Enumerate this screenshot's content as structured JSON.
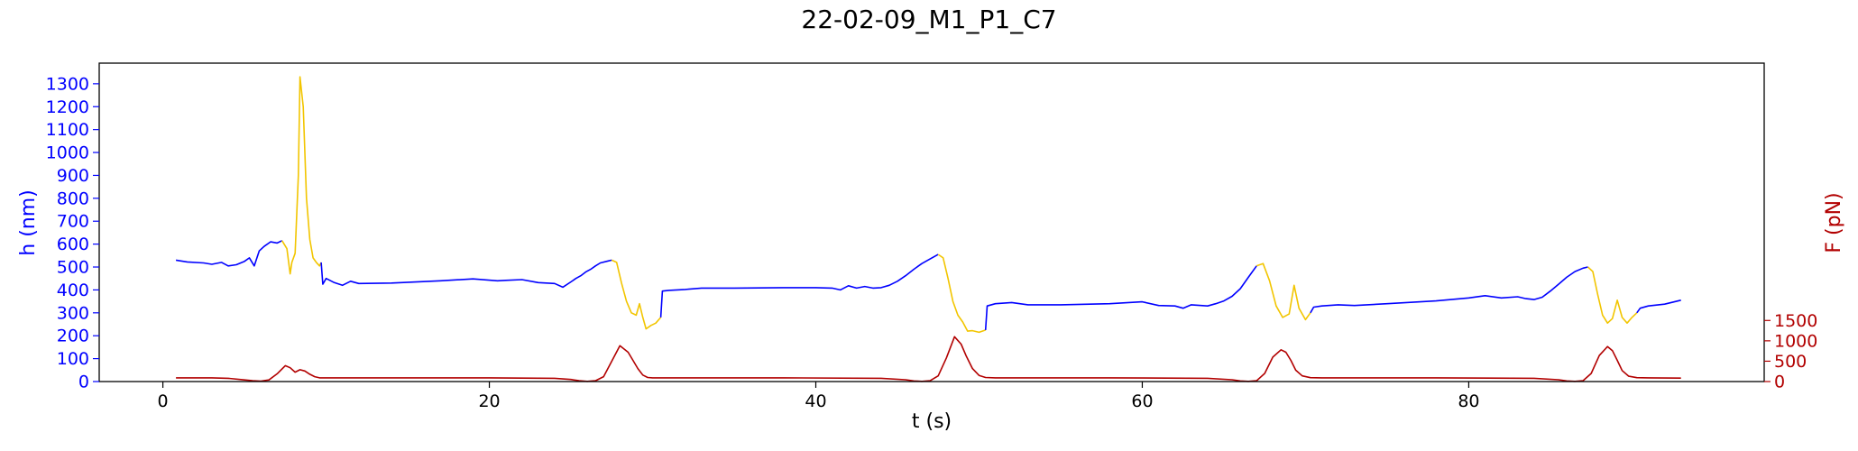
{
  "chart_data": {
    "type": "line",
    "title": "22-02-09_M1_P1_C7",
    "xlabel": "t (s)",
    "ylabel_left": "h (nm)",
    "ylabel_right": "F (pN)",
    "xlim": [
      -3.9,
      98.1
    ],
    "ylim_left": [
      0,
      1390
    ],
    "ylim_right": [
      0,
      7820
    ],
    "x_ticks": [
      0,
      20,
      40,
      60,
      80
    ],
    "y_left_ticks": [
      0,
      100,
      200,
      300,
      400,
      500,
      600,
      700,
      800,
      900,
      1000,
      1100,
      1200,
      1300
    ],
    "y_right_ticks": [
      0,
      500,
      1000,
      1500
    ],
    "colors": {
      "h_series": "#0000ff",
      "h_compression": "#f2c500",
      "force": "#b20000",
      "left_axis": "#0000ff",
      "right_axis": "#b20000"
    },
    "grid": false,
    "series": [
      {
        "axis": "left",
        "color": "#0000ff",
        "x": [
          0.8,
          1.5,
          2.5,
          3.0,
          3.6,
          4.0,
          4.5,
          5.0,
          5.3,
          5.6,
          5.9,
          6.2,
          6.6,
          7.0,
          7.3
        ],
        "y": [
          530,
          522,
          518,
          512,
          520,
          505,
          510,
          525,
          540,
          505,
          570,
          590,
          610,
          605,
          615
        ]
      },
      {
        "axis": "left",
        "color": "#f2c500",
        "x": [
          7.3,
          7.6,
          7.8,
          7.9,
          8.1,
          8.3,
          8.4,
          8.6,
          8.8,
          9.0,
          9.2,
          9.4,
          9.6,
          9.7
        ],
        "y": [
          615,
          580,
          470,
          520,
          560,
          900,
          1330,
          1200,
          800,
          620,
          540,
          520,
          505,
          520
        ]
      },
      {
        "axis": "left",
        "color": "#0000ff",
        "x": [
          9.7,
          9.8,
          10.0,
          10.5,
          11.0,
          11.5,
          12.0,
          14.0,
          17.0,
          19.0,
          20.5,
          21.0,
          22.0,
          23.0,
          24.0,
          24.5,
          25.0,
          25.3,
          25.6,
          25.9,
          26.2,
          26.5,
          26.8,
          27.2,
          27.5
        ],
        "y": [
          520,
          425,
          450,
          432,
          420,
          438,
          428,
          430,
          440,
          448,
          440,
          442,
          445,
          432,
          428,
          412,
          435,
          450,
          462,
          478,
          490,
          505,
          518,
          525,
          530
        ]
      },
      {
        "axis": "left",
        "color": "#f2c500",
        "x": [
          27.5,
          27.8,
          28.1,
          28.4,
          28.7,
          29.0,
          29.2,
          29.4,
          29.6,
          29.9,
          30.2,
          30.5
        ],
        "y": [
          530,
          520,
          430,
          350,
          300,
          290,
          340,
          280,
          230,
          245,
          255,
          280
        ]
      },
      {
        "axis": "left",
        "color": "#0000ff",
        "x": [
          30.5,
          30.6,
          31.0,
          32.0,
          33.0,
          35.0,
          38.0,
          40.0,
          41.0,
          41.5,
          42.0,
          42.5,
          43.0,
          43.5,
          44.0,
          44.5,
          45.0,
          45.5,
          46.0,
          46.5,
          47.0,
          47.5
        ],
        "y": [
          280,
          395,
          398,
          402,
          408,
          408,
          410,
          410,
          408,
          400,
          418,
          408,
          415,
          408,
          410,
          420,
          438,
          462,
          490,
          515,
          535,
          555
        ]
      },
      {
        "axis": "left",
        "color": "#f2c500",
        "x": [
          47.5,
          47.8,
          48.1,
          48.4,
          48.7,
          49.0,
          49.3,
          49.6,
          50.0,
          50.4
        ],
        "y": [
          555,
          540,
          450,
          350,
          290,
          260,
          220,
          222,
          215,
          225
        ]
      },
      {
        "axis": "left",
        "color": "#0000ff",
        "x": [
          50.4,
          50.5,
          51.0,
          52.0,
          53.0,
          55.0,
          58.0,
          60.0,
          61.0,
          62.0,
          62.5,
          63.0,
          64.0,
          64.5,
          65.0,
          65.5,
          66.0,
          66.5,
          67.0
        ],
        "y": [
          225,
          330,
          340,
          345,
          335,
          335,
          340,
          348,
          332,
          330,
          320,
          335,
          330,
          340,
          352,
          372,
          405,
          455,
          505
        ]
      },
      {
        "axis": "left",
        "color": "#f2c500",
        "x": [
          67.0,
          67.4,
          67.8,
          68.2,
          68.6,
          69.0,
          69.3,
          69.6,
          70.0,
          70.3
        ],
        "y": [
          505,
          515,
          440,
          330,
          280,
          295,
          420,
          320,
          270,
          300
        ]
      },
      {
        "axis": "left",
        "color": "#0000ff",
        "x": [
          70.3,
          70.5,
          71.0,
          72.0,
          73.0,
          75.0,
          78.0,
          80.0,
          81.0,
          82.0,
          83.0,
          83.5,
          84.0,
          84.5,
          85.0,
          85.5,
          86.0,
          86.5,
          87.0,
          87.3
        ],
        "y": [
          300,
          325,
          330,
          335,
          332,
          340,
          352,
          365,
          375,
          365,
          370,
          362,
          358,
          368,
          395,
          425,
          455,
          480,
          495,
          500
        ]
      },
      {
        "axis": "left",
        "color": "#f2c500",
        "x": [
          87.3,
          87.6,
          87.9,
          88.2,
          88.5,
          88.8,
          89.1,
          89.4,
          89.7,
          90.0,
          90.3
        ],
        "y": [
          500,
          480,
          380,
          290,
          255,
          275,
          355,
          280,
          255,
          280,
          300
        ]
      },
      {
        "axis": "left",
        "color": "#0000ff",
        "x": [
          90.3,
          90.5,
          91.0,
          92.0,
          93.0
        ],
        "y": [
          300,
          320,
          330,
          338,
          355
        ]
      },
      {
        "axis": "right",
        "color": "#b20000",
        "x": [
          0.8,
          2.0,
          3.0,
          4.0,
          5.0,
          5.5,
          6.0,
          6.5,
          7.0,
          7.5,
          7.8,
          8.1,
          8.4,
          8.7,
          9.0,
          9.3,
          9.6,
          10.0,
          10.5,
          12.0,
          15.0,
          20.0,
          24.0,
          25.0,
          25.5,
          26.0,
          26.5,
          27.0,
          27.5,
          28.0,
          28.5,
          28.8,
          29.1,
          29.4,
          29.7,
          30.0,
          30.5,
          31.0,
          33.0,
          38.0,
          44.0,
          45.5,
          46.0,
          46.5,
          47.0,
          47.5,
          48.0,
          48.5,
          48.9,
          49.2,
          49.6,
          50.0,
          50.4,
          51.0,
          53.0,
          58.0,
          64.0,
          65.5,
          66.0,
          66.5,
          67.0,
          67.5,
          68.0,
          68.5,
          68.8,
          69.1,
          69.4,
          69.8,
          70.3,
          71.0,
          73.0,
          78.0,
          84.0,
          85.5,
          86.0,
          86.5,
          87.0,
          87.5,
          88.0,
          88.5,
          88.8,
          89.1,
          89.4,
          89.8,
          90.3,
          91.0,
          93.0
        ],
        "y": [
          90,
          90,
          90,
          80,
          40,
          20,
          10,
          40,
          190,
          390,
          340,
          230,
          290,
          260,
          180,
          120,
          90,
          90,
          90,
          90,
          90,
          90,
          80,
          50,
          20,
          5,
          20,
          120,
          500,
          880,
          720,
          520,
          320,
          160,
          100,
          90,
          90,
          90,
          90,
          90,
          80,
          45,
          15,
          5,
          20,
          140,
          580,
          1100,
          920,
          640,
          320,
          150,
          100,
          90,
          90,
          90,
          80,
          45,
          15,
          5,
          20,
          200,
          600,
          780,
          720,
          520,
          280,
          140,
          95,
          90,
          90,
          90,
          80,
          45,
          15,
          5,
          20,
          200,
          640,
          860,
          760,
          520,
          270,
          130,
          95,
          90,
          85
        ]
      }
    ]
  }
}
